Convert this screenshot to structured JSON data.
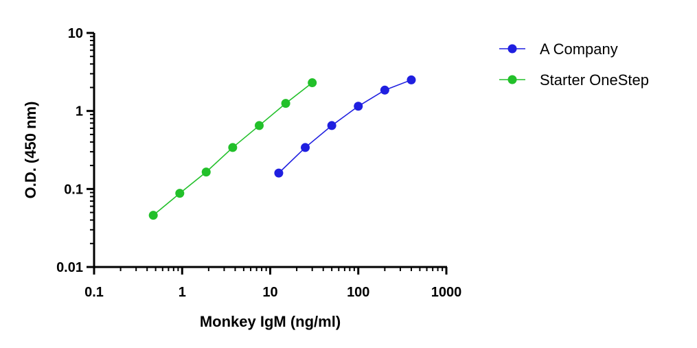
{
  "chart_data": {
    "type": "scatter",
    "title": "",
    "xlabel": "Monkey IgM (ng/ml)",
    "ylabel": "O.D. (450 nm)",
    "x_scale": "log",
    "y_scale": "log",
    "xlim": [
      0.1,
      1000
    ],
    "ylim": [
      0.01,
      10
    ],
    "x_ticks": [
      "0.1",
      "1",
      "10",
      "100",
      "1000"
    ],
    "y_ticks": [
      "0.01",
      "0.1",
      "1",
      "10"
    ],
    "grid": false,
    "legend_position": "top-right, outside plot",
    "series": [
      {
        "name": "A Company",
        "color": "#1f1fe0",
        "x": [
          12.5,
          25,
          50,
          100,
          200,
          400
        ],
        "y": [
          0.16,
          0.34,
          0.65,
          1.15,
          1.85,
          2.5
        ]
      },
      {
        "name": "Starter OneStep",
        "color": "#22c02a",
        "x": [
          0.47,
          0.94,
          1.875,
          3.75,
          7.5,
          15,
          30
        ],
        "y": [
          0.046,
          0.088,
          0.165,
          0.34,
          0.65,
          1.25,
          2.3
        ]
      }
    ]
  }
}
